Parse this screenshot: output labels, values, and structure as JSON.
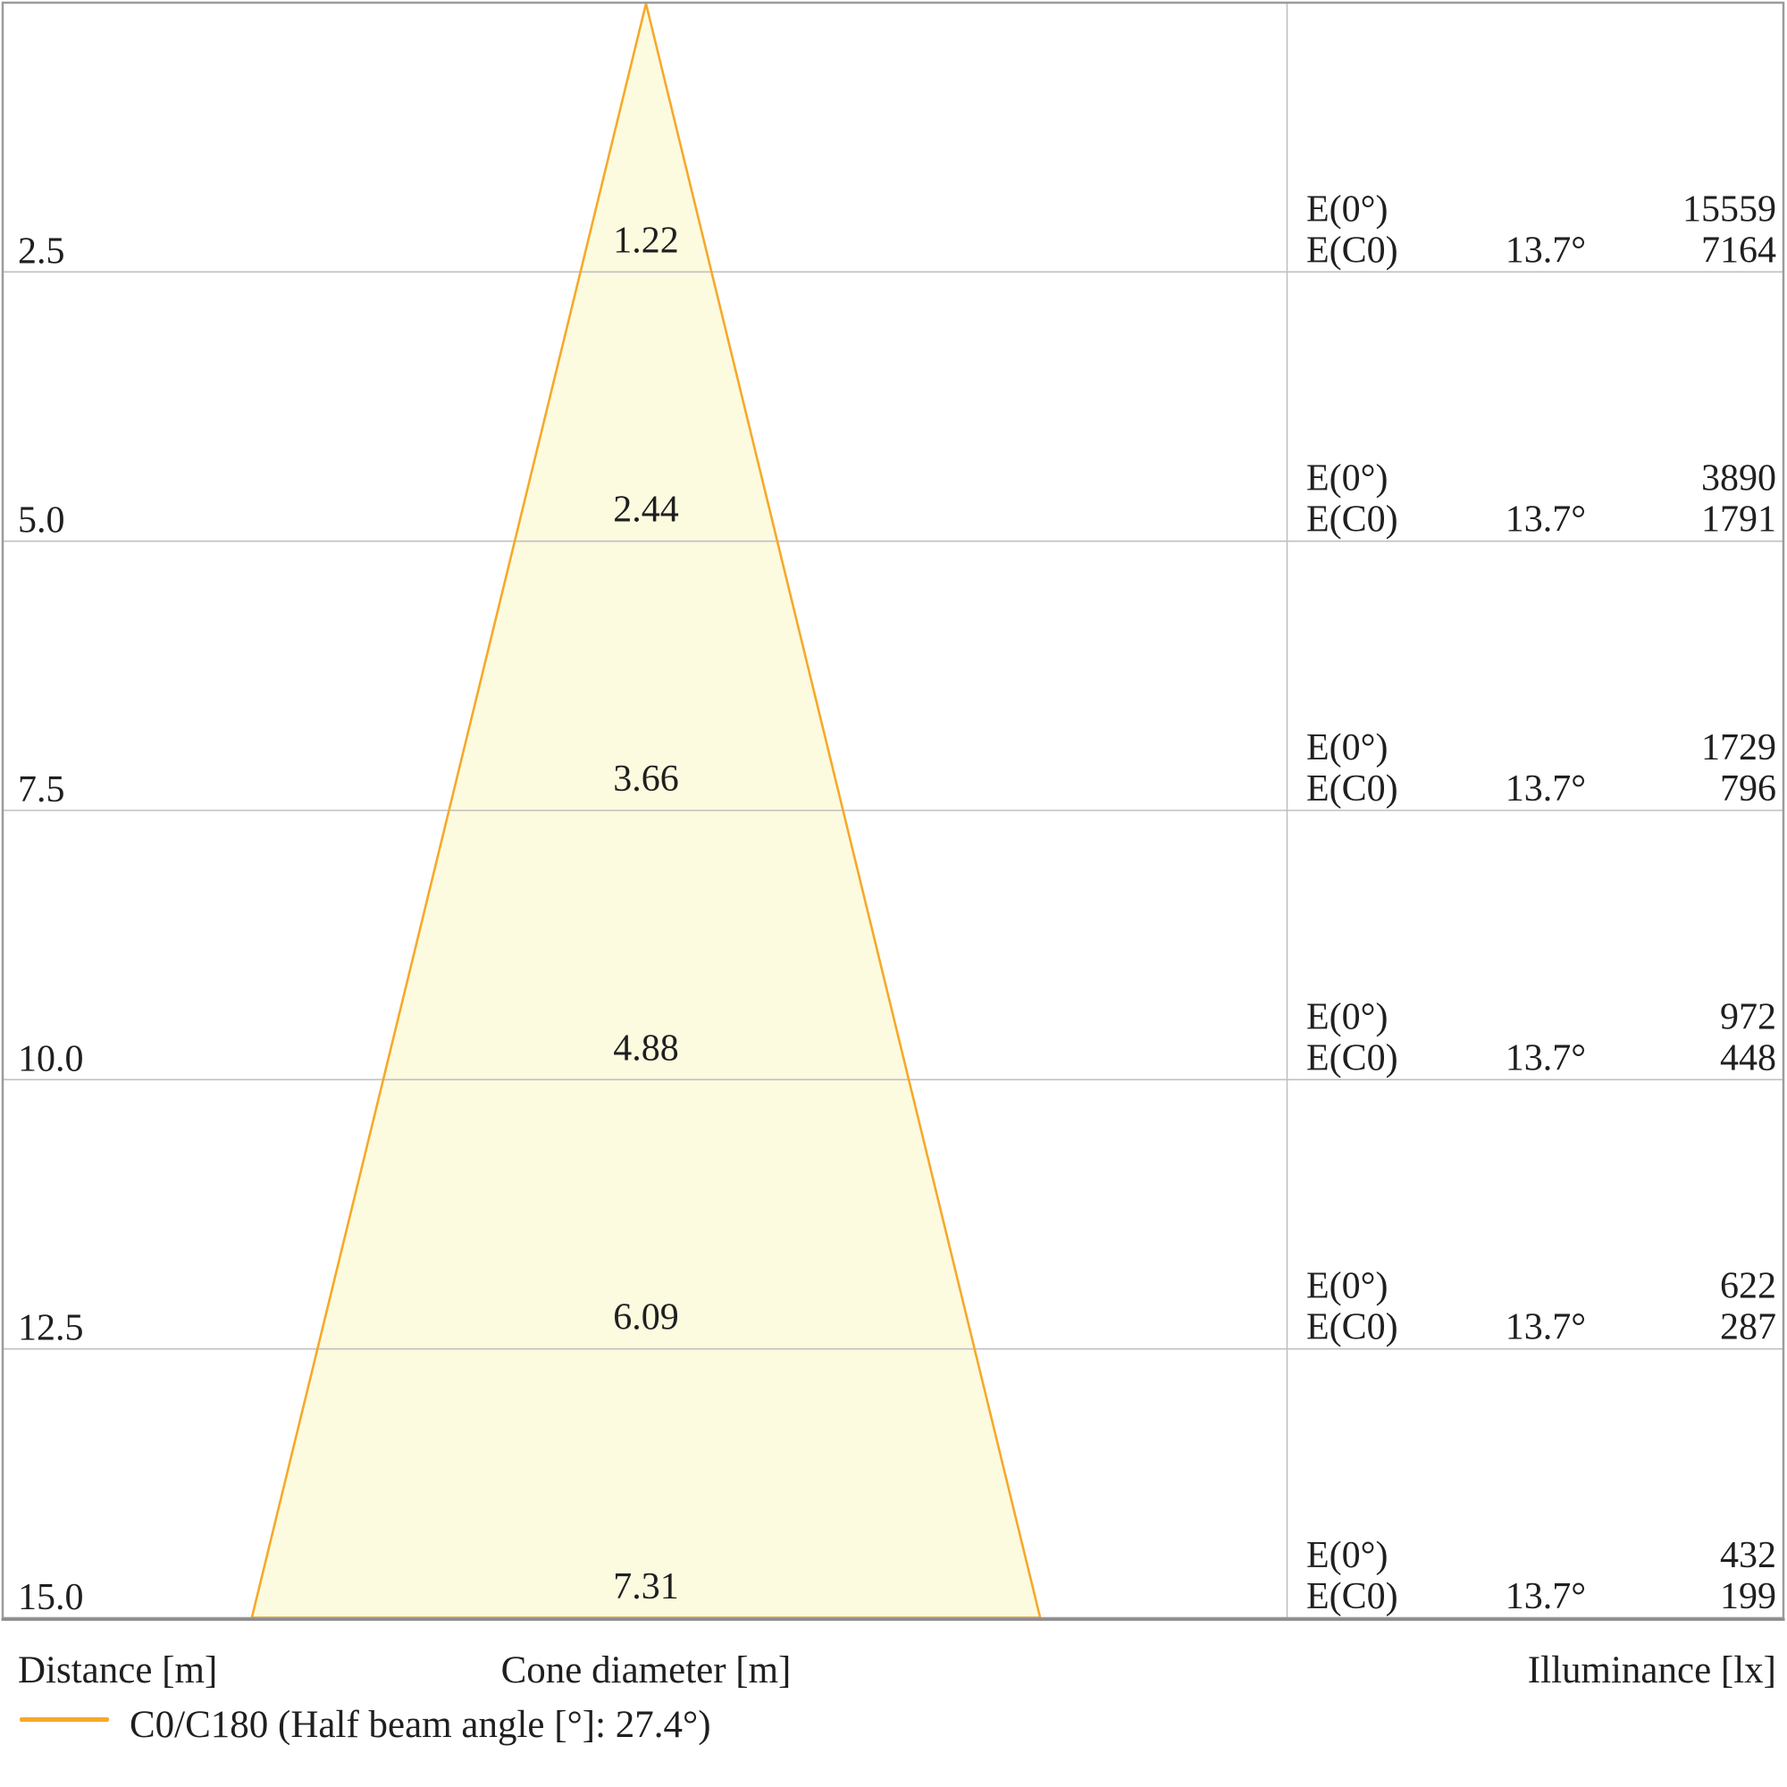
{
  "chart_data": {
    "type": "cone-diagram",
    "description": "Photometric light cone diagram: beam cone diameter and illuminance at increasing distances below the luminaire",
    "columns": {
      "distance": "Distance [m]",
      "cone_diameter": "Cone diameter [m]",
      "illuminance": "Illuminance [lx]"
    },
    "e_labels": {
      "e0": "E(0°)",
      "ec0": "E(C0)"
    },
    "rows": [
      {
        "distance": "2.5",
        "diameter": "1.22",
        "e0": "15559",
        "angle": "13.7°",
        "ec0": "7164"
      },
      {
        "distance": "5.0",
        "diameter": "2.44",
        "e0": "3890",
        "angle": "13.7°",
        "ec0": "1791"
      },
      {
        "distance": "7.5",
        "diameter": "3.66",
        "e0": "1729",
        "angle": "13.7°",
        "ec0": "796"
      },
      {
        "distance": "10.0",
        "diameter": "4.88",
        "e0": "972",
        "angle": "13.7°",
        "ec0": "448"
      },
      {
        "distance": "12.5",
        "diameter": "6.09",
        "e0": "622",
        "angle": "13.7°",
        "ec0": "287"
      },
      {
        "distance": "15.0",
        "diameter": "7.31",
        "e0": "432",
        "angle": "13.7°",
        "ec0": "199"
      }
    ],
    "distances_m": [
      2.5,
      5.0,
      7.5,
      10.0,
      12.5,
      15.0
    ],
    "cone_diameters_m": [
      1.22,
      2.44,
      3.66,
      4.88,
      6.09,
      7.31
    ],
    "E0_lx": [
      15559,
      3890,
      1729,
      972,
      622,
      432
    ],
    "EC0_lx": [
      7164,
      1791,
      796,
      448,
      287,
      199
    ],
    "EC0_angle_deg": 13.7,
    "half_beam_angle_deg": 27.4,
    "legend": {
      "label": "C0/C180 (Half beam angle [°]: 27.4°)",
      "color": "#F6A929"
    },
    "colors": {
      "cone_fill": "#FCFADF",
      "cone_stroke": "#F6A929",
      "grid": "#C0C0C0",
      "border": "#9B9B9B",
      "border_dark": "#8F8F8F",
      "text": "#1F1F1F"
    },
    "layout_hints": {
      "grid": "horizontal lines per distance step, one vertical divider before illuminance section",
      "legend_position": "bottom-left",
      "distance_axis": "increases downward"
    }
  }
}
